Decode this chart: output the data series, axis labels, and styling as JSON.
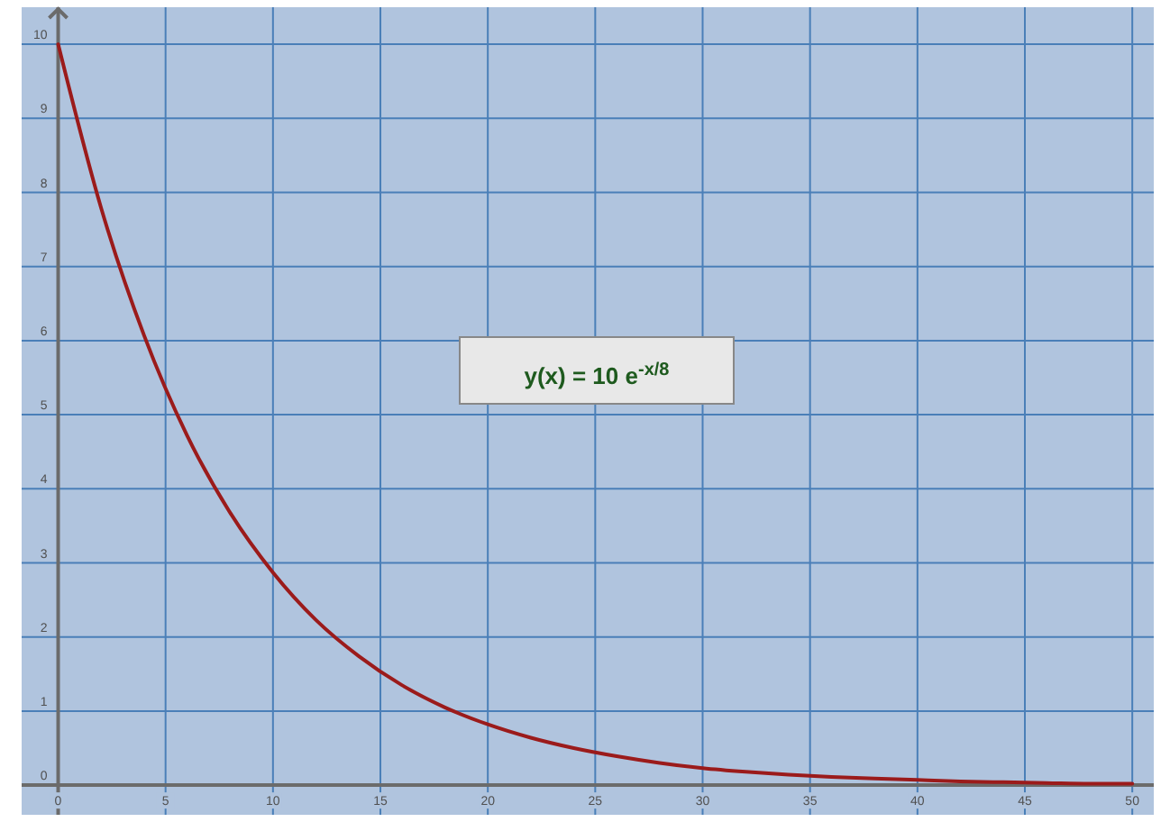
{
  "chart_data": {
    "type": "line",
    "x": [
      0,
      2,
      4,
      6,
      8,
      10,
      12,
      14,
      16,
      18,
      20,
      22,
      24,
      26,
      28,
      30,
      32,
      34,
      36,
      38,
      40,
      42,
      44,
      46,
      48,
      50
    ],
    "series": [
      {
        "color": "#9b1b1b",
        "values": [
          10,
          7.79,
          6.07,
          4.72,
          3.68,
          2.87,
          2.23,
          1.74,
          1.35,
          1.05,
          0.82,
          0.64,
          0.5,
          0.39,
          0.3,
          0.23,
          0.18,
          0.14,
          0.11,
          0.09,
          0.07,
          0.05,
          0.04,
          0.03,
          0.02,
          0.02
        ]
      }
    ],
    "xlim": [
      -1.7,
      51
    ],
    "ylim": [
      -0.4,
      10.5
    ],
    "xticks": [
      0,
      5,
      10,
      15,
      20,
      25,
      30,
      35,
      40,
      45,
      50
    ],
    "yticks": [
      0,
      1,
      2,
      3,
      4,
      5,
      6,
      7,
      8,
      9,
      10
    ],
    "grid": true,
    "marker": "none",
    "line_style": "solid",
    "annotations": [
      "y(x) = 10 e$^{-x/8}$"
    ]
  }
}
